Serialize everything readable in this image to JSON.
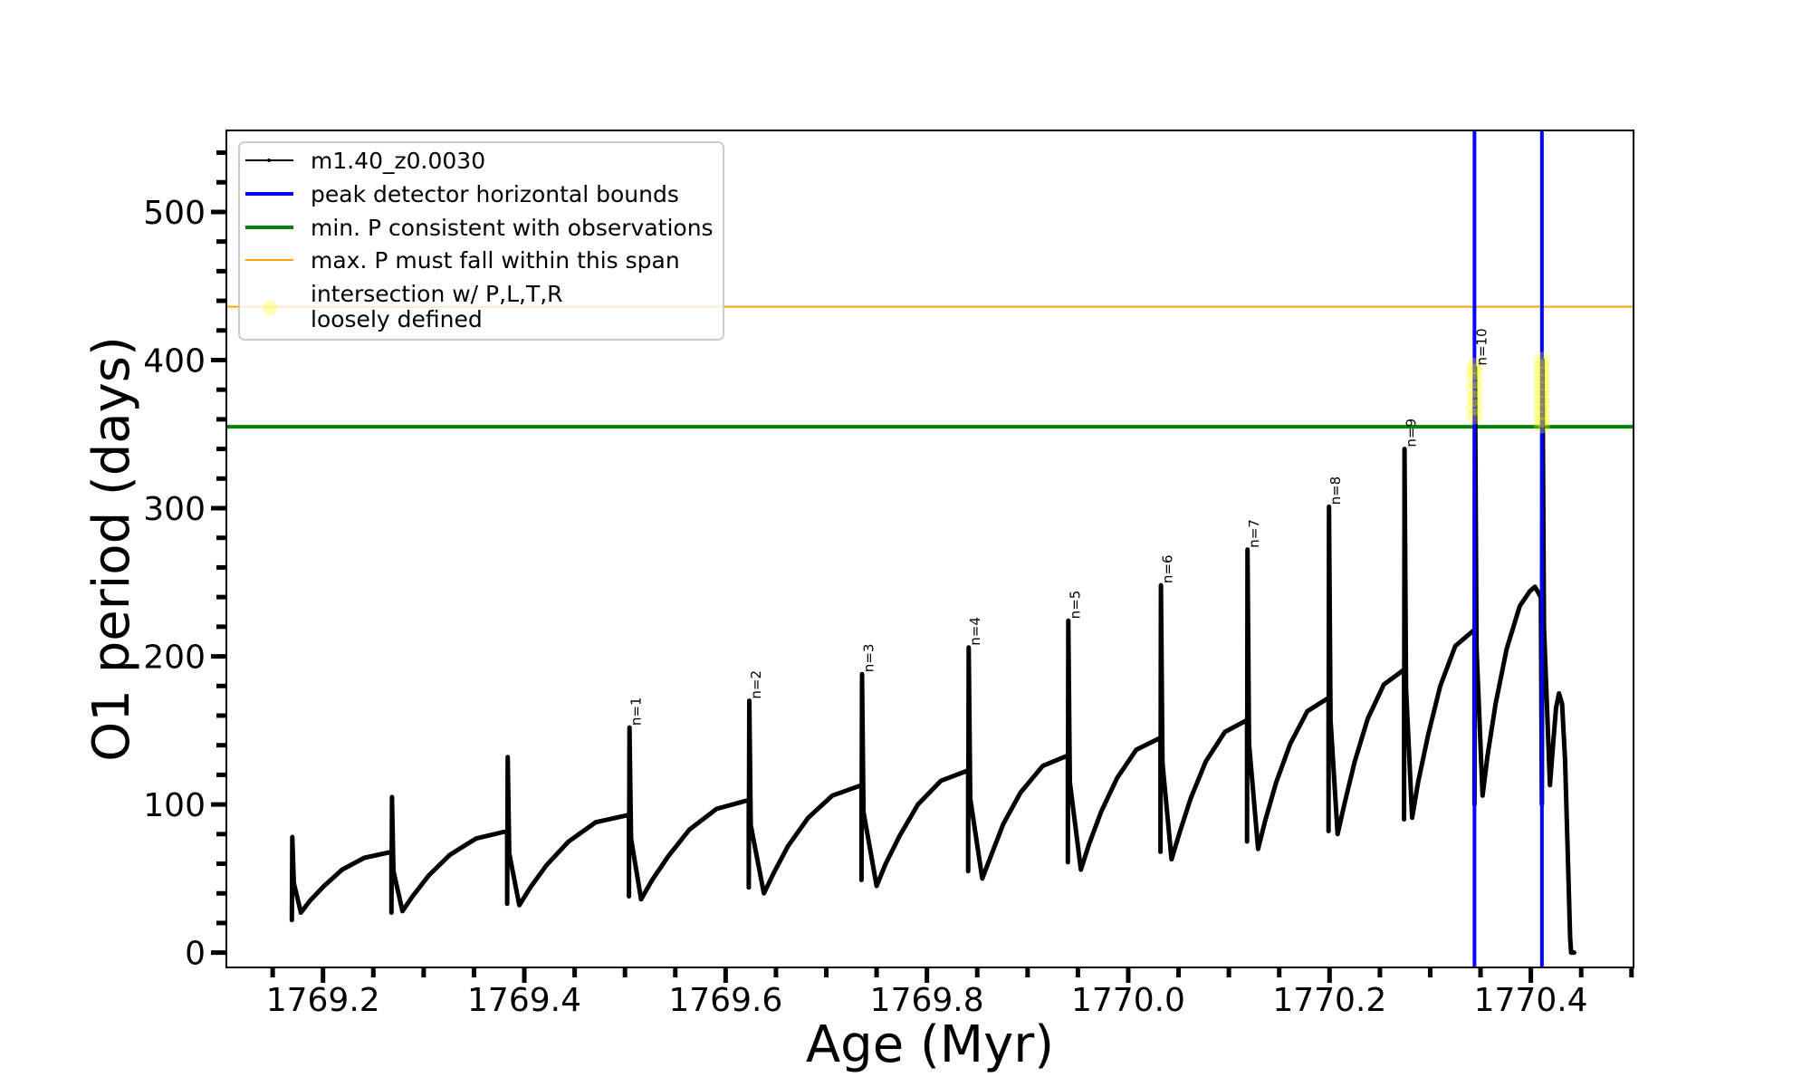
{
  "chart_data": {
    "type": "line",
    "xlabel": "Age (Myr)",
    "ylabel": "O1 period (days)",
    "xlim": [
      1769.104,
      1770.502
    ],
    "ylim": [
      -10,
      555
    ],
    "x_ticks": [
      "1769.2",
      "1769.4",
      "1769.6",
      "1769.8",
      "1770.0",
      "1770.2",
      "1770.4"
    ],
    "y_ticks": [
      "0",
      "100",
      "200",
      "300",
      "400",
      "500"
    ],
    "grid": false,
    "legend_placement": "upper-left",
    "legend": [
      {
        "label": "m1.40_z0.0030",
        "color": "#000000",
        "style": "line-with-marker"
      },
      {
        "label": "peak detector horizontal bounds",
        "color": "#0000ff",
        "style": "thick-line"
      },
      {
        "label": "min. P consistent with observations",
        "color": "#008000",
        "style": "thick-line"
      },
      {
        "label": "max. P must fall within this span",
        "color": "#ffa500",
        "style": "thin-line"
      },
      {
        "label": "intersection w/ P,L,T,R\nloosely defined",
        "color": "#ffff00",
        "style": "marker"
      }
    ],
    "series": [
      {
        "name": "m1.40_z0.0030",
        "color": "#000000",
        "points": [
          [
            1769.169,
            22
          ],
          [
            1769.1695,
            78
          ],
          [
            1769.171,
            47
          ],
          [
            1769.178,
            27
          ],
          [
            1769.187,
            35
          ],
          [
            1769.201,
            45
          ],
          [
            1769.219,
            56
          ],
          [
            1769.241,
            64
          ],
          [
            1769.268,
            68
          ],
          [
            1769.268,
            27
          ],
          [
            1769.2685,
            105
          ],
          [
            1769.27,
            55
          ],
          [
            1769.279,
            28
          ],
          [
            1769.289,
            38
          ],
          [
            1769.305,
            52
          ],
          [
            1769.326,
            66
          ],
          [
            1769.352,
            77
          ],
          [
            1769.383,
            82
          ],
          [
            1769.383,
            33
          ],
          [
            1769.3835,
            132
          ],
          [
            1769.385,
            67
          ],
          [
            1769.395,
            32
          ],
          [
            1769.406,
            44
          ],
          [
            1769.422,
            59
          ],
          [
            1769.444,
            75
          ],
          [
            1769.471,
            88
          ],
          [
            1769.504,
            93
          ],
          [
            1769.504,
            38
          ],
          [
            1769.5045,
            152
          ],
          [
            1769.506,
            77
          ],
          [
            1769.516,
            36
          ],
          [
            1769.527,
            49
          ],
          [
            1769.543,
            65
          ],
          [
            1769.564,
            83
          ],
          [
            1769.591,
            97
          ],
          [
            1769.623,
            103
          ],
          [
            1769.623,
            44
          ],
          [
            1769.6235,
            170
          ],
          [
            1769.625,
            86
          ],
          [
            1769.638,
            40
          ],
          [
            1769.648,
            54
          ],
          [
            1769.662,
            72
          ],
          [
            1769.682,
            91
          ],
          [
            1769.706,
            106
          ],
          [
            1769.735,
            113
          ],
          [
            1769.735,
            49
          ],
          [
            1769.7355,
            188
          ],
          [
            1769.737,
            95
          ],
          [
            1769.75,
            45
          ],
          [
            1769.759,
            60
          ],
          [
            1769.773,
            79
          ],
          [
            1769.791,
            100
          ],
          [
            1769.814,
            116
          ],
          [
            1769.841,
            123
          ],
          [
            1769.841,
            55
          ],
          [
            1769.8415,
            206
          ],
          [
            1769.843,
            104
          ],
          [
            1769.855,
            50
          ],
          [
            1769.864,
            66
          ],
          [
            1769.876,
            87
          ],
          [
            1769.893,
            108
          ],
          [
            1769.915,
            126
          ],
          [
            1769.94,
            133
          ],
          [
            1769.94,
            61
          ],
          [
            1769.9405,
            224
          ],
          [
            1769.942,
            115
          ],
          [
            1769.953,
            56
          ],
          [
            1769.961,
            73
          ],
          [
            1769.973,
            95
          ],
          [
            1769.989,
            118
          ],
          [
            1770.008,
            137
          ],
          [
            1770.032,
            145
          ],
          [
            1770.032,
            68
          ],
          [
            1770.0325,
            248
          ],
          [
            1770.034,
            128
          ],
          [
            1770.043,
            63
          ],
          [
            1770.051,
            81
          ],
          [
            1770.062,
            104
          ],
          [
            1770.077,
            129
          ],
          [
            1770.096,
            149
          ],
          [
            1770.118,
            157
          ],
          [
            1770.118,
            75
          ],
          [
            1770.1185,
            272
          ],
          [
            1770.12,
            141
          ],
          [
            1770.129,
            70
          ],
          [
            1770.136,
            89
          ],
          [
            1770.147,
            115
          ],
          [
            1770.161,
            141
          ],
          [
            1770.178,
            163
          ],
          [
            1770.199,
            172
          ],
          [
            1770.199,
            82
          ],
          [
            1770.1995,
            301
          ],
          [
            1770.201,
            157
          ],
          [
            1770.208,
            80
          ],
          [
            1770.215,
            101
          ],
          [
            1770.225,
            129
          ],
          [
            1770.238,
            158
          ],
          [
            1770.254,
            181
          ],
          [
            1770.274,
            191
          ],
          [
            1770.274,
            90
          ],
          [
            1770.2745,
            340
          ],
          [
            1770.276,
            178
          ],
          [
            1770.282,
            91
          ],
          [
            1770.288,
            115
          ],
          [
            1770.298,
            147
          ],
          [
            1770.31,
            180
          ],
          [
            1770.325,
            207
          ],
          [
            1770.344,
            218
          ],
          [
            1770.344,
            100
          ],
          [
            1770.3445,
            395
          ],
          [
            1770.346,
            206
          ],
          [
            1770.352,
            106
          ],
          [
            1770.357,
            133
          ],
          [
            1770.365,
            168
          ],
          [
            1770.376,
            205
          ],
          [
            1770.389,
            234
          ],
          [
            1770.399,
            244
          ],
          [
            1770.404,
            247
          ],
          [
            1770.41,
            240
          ],
          [
            1770.411,
            100
          ],
          [
            1770.4115,
            400
          ],
          [
            1770.413,
            220
          ],
          [
            1770.419,
            113
          ],
          [
            1770.422,
            140
          ],
          [
            1770.425,
            165
          ],
          [
            1770.428,
            175
          ],
          [
            1770.431,
            168
          ],
          [
            1770.434,
            130
          ],
          [
            1770.437,
            60
          ],
          [
            1770.439,
            10
          ],
          [
            1770.44,
            0
          ],
          [
            1770.443,
            0
          ]
        ]
      }
    ],
    "vertical_lines": {
      "color": "#0000ff",
      "x": [
        1770.344,
        1770.411
      ]
    },
    "hlines": [
      {
        "color": "#008000",
        "y": 355
      },
      {
        "color": "#ffa500",
        "y": 436
      }
    ],
    "intersection_points": {
      "color": "#ffff00",
      "alpha": 0.3,
      "points": [
        [
          1770.344,
          362
        ],
        [
          1770.344,
          368
        ],
        [
          1770.344,
          374
        ],
        [
          1770.344,
          380
        ],
        [
          1770.344,
          386
        ],
        [
          1770.344,
          392
        ],
        [
          1770.344,
          396
        ],
        [
          1770.411,
          356
        ],
        [
          1770.411,
          360
        ],
        [
          1770.411,
          365
        ],
        [
          1770.411,
          370
        ],
        [
          1770.411,
          375
        ],
        [
          1770.411,
          380
        ],
        [
          1770.411,
          385
        ],
        [
          1770.411,
          390
        ],
        [
          1770.411,
          395
        ],
        [
          1770.411,
          400
        ]
      ]
    },
    "annotations": [
      {
        "text": "n=1",
        "x": 1769.504,
        "y": 152
      },
      {
        "text": "n=2",
        "x": 1769.623,
        "y": 170
      },
      {
        "text": "n=3",
        "x": 1769.735,
        "y": 188
      },
      {
        "text": "n=4",
        "x": 1769.841,
        "y": 206
      },
      {
        "text": "n=5",
        "x": 1769.94,
        "y": 224
      },
      {
        "text": "n=6",
        "x": 1770.032,
        "y": 248
      },
      {
        "text": "n=7",
        "x": 1770.118,
        "y": 272
      },
      {
        "text": "n=8",
        "x": 1770.199,
        "y": 301
      },
      {
        "text": "n=9",
        "x": 1770.274,
        "y": 340
      },
      {
        "text": "n=10",
        "x": 1770.344,
        "y": 395
      }
    ]
  }
}
